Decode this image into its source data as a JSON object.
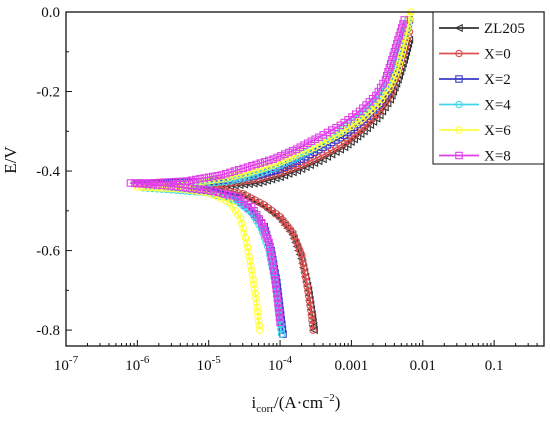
{
  "chart_data": {
    "type": "line",
    "xlabel": "icorr/(A·cm−2)",
    "xlabel_parts": {
      "main": "i",
      "sub": "corr",
      "rest": "/(A·cm",
      "sup": "−2",
      "close": ")"
    },
    "ylabel": "E/V",
    "x_scale": "log",
    "xlim": [
      1e-07,
      0.5
    ],
    "ylim": [
      -0.84,
      0.0
    ],
    "grid": false,
    "legend_position": "top-right",
    "x_ticks": [
      {
        "value": 1e-07,
        "base": "10",
        "exp": "-7"
      },
      {
        "value": 1e-06,
        "base": "10",
        "exp": "-6"
      },
      {
        "value": 1e-05,
        "base": "10",
        "exp": "-5"
      },
      {
        "value": 0.0001,
        "base": "10",
        "exp": "-4"
      },
      {
        "value": 0.001,
        "label": "0.001"
      },
      {
        "value": 0.01,
        "label": "0.01"
      },
      {
        "value": 0.1,
        "label": "0.1"
      }
    ],
    "y_ticks": [
      {
        "value": 0.0,
        "label": "0.0"
      },
      {
        "value": -0.2,
        "label": "-0.2"
      },
      {
        "value": -0.4,
        "label": "-0.4"
      },
      {
        "value": -0.6,
        "label": "-0.6"
      },
      {
        "value": -0.8,
        "label": "-0.8"
      }
    ],
    "series": [
      {
        "name": "ZL205",
        "color": "#333333",
        "marker": "triangle-left",
        "points": [
          [
            0.0065,
            -0.07
          ],
          [
            0.0055,
            -0.12
          ],
          [
            0.0045,
            -0.17
          ],
          [
            0.0035,
            -0.22
          ],
          [
            0.0025,
            -0.26
          ],
          [
            0.0015,
            -0.3
          ],
          [
            0.0008,
            -0.34
          ],
          [
            0.0004,
            -0.37
          ],
          [
            0.0002,
            -0.395
          ],
          [
            0.0001,
            -0.415
          ],
          [
            5e-05,
            -0.43
          ],
          [
            2e-05,
            -0.438
          ],
          [
            6e-06,
            -0.44
          ],
          [
            2e-06,
            -0.436
          ],
          [
            1e-06,
            -0.43
          ],
          [
            3e-06,
            -0.438
          ],
          [
            1e-05,
            -0.445
          ],
          [
            3e-05,
            -0.46
          ],
          [
            6e-05,
            -0.49
          ],
          [
            0.0001,
            -0.52
          ],
          [
            0.00015,
            -0.56
          ],
          [
            0.0002,
            -0.62
          ],
          [
            0.00025,
            -0.7
          ],
          [
            0.00028,
            -0.76
          ],
          [
            0.0003,
            -0.8
          ]
        ]
      },
      {
        "name": "X=0",
        "color": "#e05050",
        "marker": "circle",
        "points": [
          [
            0.0065,
            -0.05
          ],
          [
            0.0055,
            -0.1
          ],
          [
            0.0045,
            -0.15
          ],
          [
            0.0035,
            -0.21
          ],
          [
            0.0025,
            -0.25
          ],
          [
            0.0015,
            -0.29
          ],
          [
            0.0008,
            -0.33
          ],
          [
            0.0004,
            -0.36
          ],
          [
            0.0002,
            -0.385
          ],
          [
            0.0001,
            -0.405
          ],
          [
            5e-05,
            -0.42
          ],
          [
            2e-05,
            -0.43
          ],
          [
            6e-06,
            -0.433
          ],
          [
            2e-06,
            -0.432
          ],
          [
            1e-06,
            -0.43
          ],
          [
            3e-06,
            -0.436
          ],
          [
            1e-05,
            -0.443
          ],
          [
            3e-05,
            -0.457
          ],
          [
            6e-05,
            -0.485
          ],
          [
            0.0001,
            -0.515
          ],
          [
            0.00015,
            -0.555
          ],
          [
            0.0002,
            -0.61
          ],
          [
            0.00024,
            -0.69
          ],
          [
            0.00027,
            -0.75
          ],
          [
            0.00029,
            -0.8
          ]
        ]
      },
      {
        "name": "X=2",
        "color": "#3a3ac8",
        "marker": "square",
        "points": [
          [
            0.0065,
            -0.02
          ],
          [
            0.0055,
            -0.07
          ],
          [
            0.0045,
            -0.13
          ],
          [
            0.0035,
            -0.19
          ],
          [
            0.0025,
            -0.23
          ],
          [
            0.0015,
            -0.27
          ],
          [
            0.0008,
            -0.31
          ],
          [
            0.0004,
            -0.34
          ],
          [
            0.0002,
            -0.37
          ],
          [
            0.0001,
            -0.395
          ],
          [
            5e-05,
            -0.41
          ],
          [
            2e-05,
            -0.422
          ],
          [
            6e-06,
            -0.428
          ],
          [
            2e-06,
            -0.43
          ],
          [
            1e-06,
            -0.432
          ],
          [
            3e-06,
            -0.44
          ],
          [
            1e-05,
            -0.45
          ],
          [
            2.5e-05,
            -0.47
          ],
          [
            4e-05,
            -0.5
          ],
          [
            6e-05,
            -0.54
          ],
          [
            7.5e-05,
            -0.6
          ],
          [
            9e-05,
            -0.68
          ],
          [
            0.0001,
            -0.75
          ],
          [
            0.00011,
            -0.81
          ]
        ]
      },
      {
        "name": "X=4",
        "color": "#40d8e8",
        "marker": "circle",
        "points": [
          [
            0.0062,
            -0.02
          ],
          [
            0.0052,
            -0.07
          ],
          [
            0.0042,
            -0.12
          ],
          [
            0.0032,
            -0.18
          ],
          [
            0.0022,
            -0.22
          ],
          [
            0.0013,
            -0.26
          ],
          [
            0.0007,
            -0.3
          ],
          [
            0.00035,
            -0.335
          ],
          [
            0.00018,
            -0.365
          ],
          [
            9e-05,
            -0.39
          ],
          [
            4.5e-05,
            -0.41
          ],
          [
            2e-05,
            -0.425
          ],
          [
            7e-06,
            -0.433
          ],
          [
            2.5e-06,
            -0.438
          ],
          [
            1.2e-06,
            -0.442
          ],
          [
            3e-06,
            -0.447
          ],
          [
            1e-05,
            -0.455
          ],
          [
            2.5e-05,
            -0.475
          ],
          [
            4e-05,
            -0.505
          ],
          [
            5.5e-05,
            -0.545
          ],
          [
            7e-05,
            -0.6
          ],
          [
            8.5e-05,
            -0.68
          ],
          [
            9.5e-05,
            -0.75
          ],
          [
            0.000105,
            -0.81
          ]
        ]
      },
      {
        "name": "X=6",
        "color": "#ffff40",
        "marker": "circle",
        "points": [
          [
            0.0068,
            0.0
          ],
          [
            0.006,
            -0.05
          ],
          [
            0.0052,
            -0.1
          ],
          [
            0.0044,
            -0.15
          ],
          [
            0.0035,
            -0.19
          ],
          [
            0.0024,
            -0.23
          ],
          [
            0.0014,
            -0.27
          ],
          [
            0.0007,
            -0.305
          ],
          [
            0.00035,
            -0.335
          ],
          [
            0.00017,
            -0.36
          ],
          [
            8e-05,
            -0.385
          ],
          [
            3.5e-05,
            -0.405
          ],
          [
            1.5e-05,
            -0.42
          ],
          [
            6e-06,
            -0.43
          ],
          [
            2e-06,
            -0.44
          ],
          [
            1e-06,
            -0.44
          ],
          [
            4e-06,
            -0.445
          ],
          [
            1e-05,
            -0.455
          ],
          [
            2e-05,
            -0.48
          ],
          [
            2.8e-05,
            -0.52
          ],
          [
            3.4e-05,
            -0.58
          ],
          [
            4e-05,
            -0.65
          ],
          [
            4.6e-05,
            -0.72
          ],
          [
            5.2e-05,
            -0.8
          ]
        ]
      },
      {
        "name": "X=8",
        "color": "#e040e8",
        "marker": "square",
        "points": [
          [
            0.0055,
            -0.02
          ],
          [
            0.0045,
            -0.07
          ],
          [
            0.0037,
            -0.12
          ],
          [
            0.003,
            -0.17
          ],
          [
            0.0022,
            -0.21
          ],
          [
            0.0013,
            -0.25
          ],
          [
            0.0007,
            -0.285
          ],
          [
            0.00035,
            -0.315
          ],
          [
            0.00017,
            -0.345
          ],
          [
            8e-05,
            -0.37
          ],
          [
            3.5e-05,
            -0.39
          ],
          [
            1.5e-05,
            -0.41
          ],
          [
            5e-06,
            -0.425
          ],
          [
            1.5e-06,
            -0.43
          ],
          [
            8e-07,
            -0.43
          ],
          [
            3e-06,
            -0.438
          ],
          [
            1e-05,
            -0.448
          ],
          [
            2.5e-05,
            -0.465
          ],
          [
            4e-05,
            -0.49
          ],
          [
            5.5e-05,
            -0.53
          ],
          [
            7e-05,
            -0.58
          ],
          [
            8.2e-05,
            -0.65
          ],
          [
            9.2e-05,
            -0.72
          ],
          [
            0.0001,
            -0.78
          ]
        ]
      }
    ]
  }
}
